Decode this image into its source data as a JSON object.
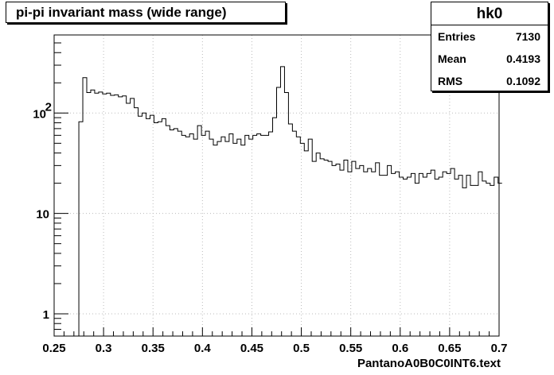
{
  "title": "pi-pi invariant mass (wide range)",
  "stats": {
    "name": "hk0",
    "rows": [
      {
        "label": "Entries",
        "value": "7130"
      },
      {
        "label": "Mean",
        "value": "0.4193"
      },
      {
        "label": "RMS",
        "value": "0.1092"
      }
    ]
  },
  "chart_data": {
    "type": "histogram",
    "title": "pi-pi invariant mass (wide range)",
    "xlabel": "PantanoA0B0C0INT6.text",
    "ylabel": "",
    "xlim": [
      0.25,
      0.7
    ],
    "ylim": [
      0.6,
      600
    ],
    "log_y": true,
    "grid": true,
    "line_color": "#000000",
    "x_ticks": [
      "0.25",
      "0.3",
      "0.35",
      "0.4",
      "0.45",
      "0.5",
      "0.55",
      "0.6",
      "0.65",
      "0.7"
    ],
    "y_ticks": [
      "1",
      "10",
      "10²"
    ],
    "bins": {
      "x_start": 0.275,
      "bin_width": 0.004,
      "values": [
        82,
        225,
        160,
        170,
        158,
        162,
        155,
        158,
        150,
        152,
        145,
        148,
        125,
        140,
        113,
        93,
        100,
        88,
        95,
        80,
        82,
        88,
        75,
        68,
        70,
        66,
        60,
        58,
        62,
        55,
        75,
        60,
        66,
        55,
        48,
        52,
        58,
        52,
        62,
        50,
        55,
        48,
        60,
        55,
        60,
        62,
        60,
        60,
        65,
        90,
        180,
        290,
        160,
        78,
        66,
        58,
        50,
        42,
        55,
        33,
        40,
        35,
        34,
        33,
        30,
        31,
        27,
        34,
        26,
        33,
        28,
        30,
        26,
        28,
        26,
        32,
        24,
        24,
        30,
        25,
        26,
        23,
        22,
        23,
        25,
        20,
        25,
        23,
        25,
        27,
        22,
        23,
        26,
        25,
        28,
        22,
        24,
        18,
        24,
        19,
        19,
        26,
        21,
        20,
        19,
        23,
        20
      ]
    }
  }
}
